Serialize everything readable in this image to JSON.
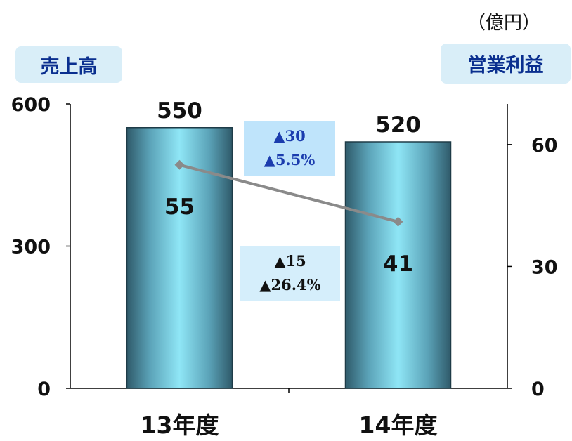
{
  "chart_data": {
    "type": "bar+line",
    "categories": [
      "13年度",
      "14年度"
    ],
    "series": [
      {
        "name": "売上高",
        "type": "bar",
        "axis": "left",
        "values": [
          550,
          520
        ],
        "labels": [
          "550",
          "520"
        ],
        "color": "#8fe3f3"
      },
      {
        "name": "営業利益",
        "type": "line",
        "axis": "right",
        "values": [
          55,
          41
        ],
        "labels": [
          "55",
          "41"
        ],
        "color": "#8a8a8a"
      }
    ],
    "left_axis": {
      "label": "売上高",
      "ylim": [
        0,
        600
      ],
      "ticks": [
        0,
        300,
        600
      ],
      "tick_labels": [
        "0",
        "300",
        "600"
      ]
    },
    "right_axis": {
      "label": "営業利益",
      "ylim": [
        0,
        70
      ],
      "ticks": [
        0,
        30,
        60
      ],
      "tick_labels": [
        "0",
        "30",
        "60"
      ]
    },
    "unit": "（億円）",
    "annotations": [
      {
        "id": "sales_change",
        "lines": [
          "▲30",
          "▲5.5%"
        ],
        "color": "#1b3cae"
      },
      {
        "id": "profit_change",
        "lines": [
          "▲15",
          "▲26.4%"
        ],
        "color": "#111111"
      }
    ],
    "grid": false,
    "legend": "none"
  }
}
